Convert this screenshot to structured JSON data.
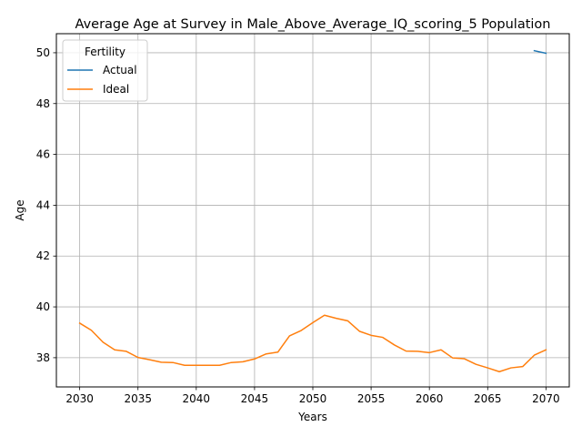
{
  "chart_data": {
    "type": "line",
    "title": "Average Age at Survey in Male_Above_Average_IQ_scoring_5 Population",
    "xlabel": "Years",
    "ylabel": "Age",
    "xlim": [
      2028,
      2072
    ],
    "ylim": [
      36.85,
      50.75
    ],
    "xticks": [
      2030,
      2035,
      2040,
      2045,
      2050,
      2055,
      2060,
      2065,
      2070
    ],
    "yticks": [
      38,
      40,
      42,
      44,
      46,
      48,
      50
    ],
    "grid": true,
    "legend": {
      "title": "Fertility",
      "placement": "upper-left"
    },
    "series": [
      {
        "name": "Actual",
        "color": "#1f77b4",
        "x": [
          2069,
          2070
        ],
        "y": [
          50.08,
          49.98
        ]
      },
      {
        "name": "Ideal",
        "color": "#ff7f0e",
        "x": [
          2030,
          2031,
          2032,
          2033,
          2034,
          2035,
          2036,
          2037,
          2038,
          2039,
          2040,
          2041,
          2042,
          2043,
          2044,
          2045,
          2046,
          2047,
          2048,
          2049,
          2050,
          2051,
          2052,
          2053,
          2054,
          2055,
          2056,
          2057,
          2058,
          2059,
          2060,
          2061,
          2062,
          2063,
          2064,
          2065,
          2066,
          2067,
          2068,
          2069,
          2070
        ],
        "y": [
          39.36,
          39.08,
          38.61,
          38.31,
          38.25,
          38.01,
          37.92,
          37.82,
          37.81,
          37.7,
          37.7,
          37.7,
          37.7,
          37.81,
          37.84,
          37.95,
          38.15,
          38.22,
          38.86,
          39.07,
          39.38,
          39.67,
          39.55,
          39.45,
          39.04,
          38.88,
          38.8,
          38.5,
          38.26,
          38.25,
          38.2,
          38.31,
          37.99,
          37.96,
          37.74,
          37.6,
          37.45,
          37.6,
          37.65,
          38.1,
          38.31
        ]
      }
    ]
  }
}
